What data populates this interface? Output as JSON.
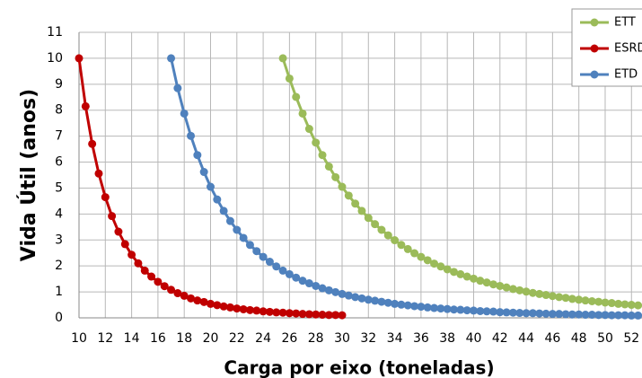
{
  "chart_data": {
    "type": "line",
    "x_label": "Carga por eixo (toneladas)",
    "y_label": "Vida Útil (anos)",
    "xlim": [
      10,
      52.8
    ],
    "ylim": [
      0,
      11
    ],
    "xticks": [
      10,
      12,
      14,
      16,
      18,
      20,
      22,
      24,
      26,
      28,
      30,
      32,
      34,
      36,
      38,
      40,
      42,
      44,
      46,
      48,
      50,
      52
    ],
    "yticks": [
      0,
      1,
      2,
      3,
      4,
      5,
      6,
      7,
      8,
      9,
      10,
      11
    ],
    "grid": true,
    "legend": "top-right",
    "series": [
      {
        "name": "ETT",
        "color": "#9bbb59",
        "x": [
          25.5,
          26,
          26.5,
          27,
          27.5,
          28,
          28.5,
          29,
          29.5,
          30,
          30.5,
          31,
          31.5,
          32,
          32.5,
          33,
          33.5,
          34,
          34.5,
          35,
          35.5,
          36,
          36.5,
          37,
          37.5,
          38,
          38.5,
          39,
          39.5,
          40,
          40.5,
          41,
          41.5,
          42,
          42.5,
          43,
          43.5,
          44,
          44.5,
          45,
          45.5,
          46,
          46.5,
          47,
          47.5,
          48,
          48.5,
          49,
          49.5,
          50,
          50.5,
          51,
          51.5,
          52,
          52.5
        ],
        "values": [
          10,
          9.22,
          8.51,
          7.87,
          7.28,
          6.75,
          6.27,
          5.83,
          5.42,
          5.05,
          4.71,
          4.4,
          4.12,
          3.85,
          3.61,
          3.39,
          3.18,
          2.99,
          2.81,
          2.65,
          2.49,
          2.35,
          2.22,
          2.09,
          1.98,
          1.87,
          1.77,
          1.68,
          1.59,
          1.51,
          1.43,
          1.36,
          1.29,
          1.23,
          1.17,
          1.11,
          1.06,
          1.01,
          0.96,
          0.92,
          0.88,
          0.84,
          0.8,
          0.77,
          0.73,
          0.7,
          0.67,
          0.64,
          0.62,
          0.59,
          0.57,
          0.54,
          0.52,
          0.5,
          0.48
        ]
      },
      {
        "name": "ESRD",
        "color": "#c00000",
        "x": [
          10,
          10.5,
          11,
          11.5,
          12,
          12.5,
          13,
          13.5,
          14,
          14.5,
          15,
          15.5,
          16,
          16.5,
          17,
          17.5,
          18,
          18.5,
          19,
          19.5,
          20,
          20.5,
          21,
          21.5,
          22,
          22.5,
          23,
          23.5,
          24,
          24.5,
          25,
          25.5,
          26,
          26.5,
          27,
          27.5,
          28,
          28.5,
          29,
          29.5,
          30
        ],
        "values": [
          10,
          8.15,
          6.7,
          5.56,
          4.65,
          3.92,
          3.32,
          2.84,
          2.43,
          2.1,
          1.82,
          1.59,
          1.39,
          1.22,
          1.08,
          0.95,
          0.85,
          0.75,
          0.67,
          0.61,
          0.54,
          0.49,
          0.44,
          0.4,
          0.36,
          0.33,
          0.3,
          0.28,
          0.25,
          0.23,
          0.21,
          0.2,
          0.18,
          0.17,
          0.15,
          0.14,
          0.13,
          0.12,
          0.11,
          0.11,
          0.1
        ]
      },
      {
        "name": "ETD",
        "color": "#4f81bd",
        "x": [
          17,
          17.5,
          18,
          18.5,
          19,
          19.5,
          20,
          20.5,
          21,
          21.5,
          22,
          22.5,
          23,
          23.5,
          24,
          24.5,
          25,
          25.5,
          26,
          26.5,
          27,
          27.5,
          28,
          28.5,
          29,
          29.5,
          30,
          30.5,
          31,
          31.5,
          32,
          32.5,
          33,
          33.5,
          34,
          34.5,
          35,
          35.5,
          36,
          36.5,
          37,
          37.5,
          38,
          38.5,
          39,
          39.5,
          40,
          40.5,
          41,
          41.5,
          42,
          42.5,
          43,
          43.5,
          44,
          44.5,
          45,
          45.5,
          46,
          46.5,
          47,
          47.5,
          48,
          48.5,
          49,
          49.5,
          50,
          50.5,
          51,
          51.5,
          52,
          52.5
        ],
        "values": [
          10,
          8.85,
          7.87,
          7.01,
          6.27,
          5.62,
          5.05,
          4.56,
          4.12,
          3.73,
          3.39,
          3.08,
          2.81,
          2.57,
          2.35,
          2.16,
          1.98,
          1.82,
          1.68,
          1.55,
          1.43,
          1.33,
          1.23,
          1.14,
          1.06,
          0.99,
          0.92,
          0.86,
          0.8,
          0.75,
          0.7,
          0.66,
          0.62,
          0.58,
          0.54,
          0.51,
          0.48,
          0.45,
          0.43,
          0.4,
          0.38,
          0.36,
          0.34,
          0.32,
          0.31,
          0.29,
          0.28,
          0.26,
          0.25,
          0.24,
          0.22,
          0.21,
          0.2,
          0.19,
          0.18,
          0.18,
          0.17,
          0.16,
          0.15,
          0.15,
          0.14,
          0.13,
          0.13,
          0.12,
          0.12,
          0.11,
          0.11,
          0.1,
          0.1,
          0.1,
          0.09,
          0.09
        ]
      }
    ]
  }
}
